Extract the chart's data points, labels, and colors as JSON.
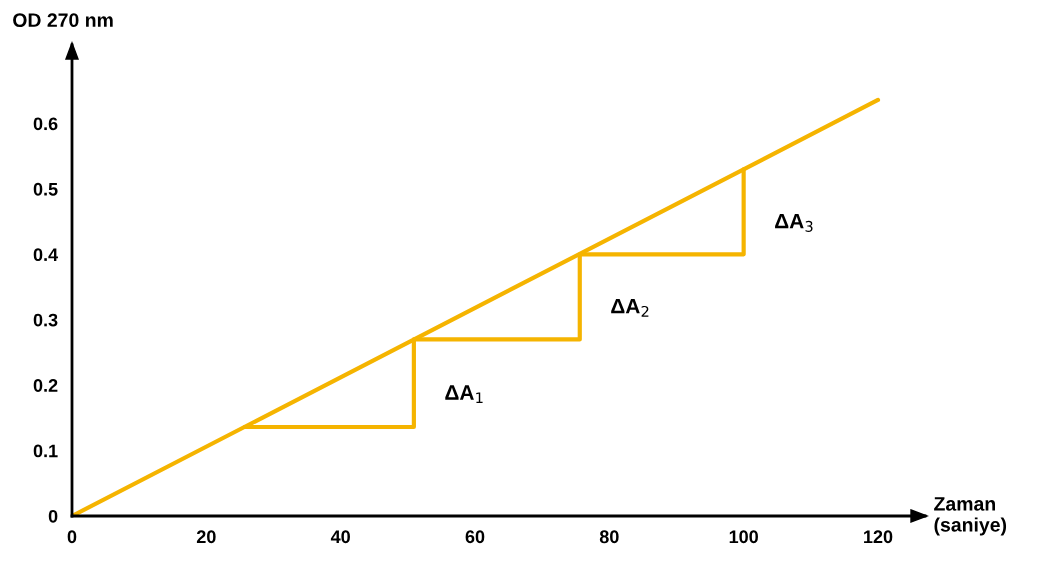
{
  "chart_data": {
    "type": "line",
    "xlabel": "Zaman\n(saniye)",
    "ylabel": "OD 270 nm",
    "series": [
      {
        "color": "#f5b400",
        "x": [
          0,
          120
        ],
        "values": [
          0,
          0.636
        ]
      },
      {
        "color": "#f5b400",
        "x": [
          25.7,
          50.9,
          50.9,
          75.6,
          75.6,
          100,
          100
        ],
        "values": [
          0.136,
          0.136,
          0.27,
          0.27,
          0.4,
          0.4,
          0.53
        ]
      }
    ],
    "annotations": [
      "ΔA$_{1}$",
      "ΔA$_{2}$",
      "ΔA$_{3}$"
    ],
    "xlim": [
      0,
      127
    ],
    "ylim": [
      0,
      0.72
    ],
    "xticks": [
      0,
      20,
      40,
      60,
      80,
      100,
      120
    ],
    "yticks": [
      0,
      0.1,
      0.2,
      0.3,
      0.4,
      0.5,
      0.6
    ],
    "grid": false,
    "legend": false,
    "marker": "none",
    "line_style": "solid"
  }
}
